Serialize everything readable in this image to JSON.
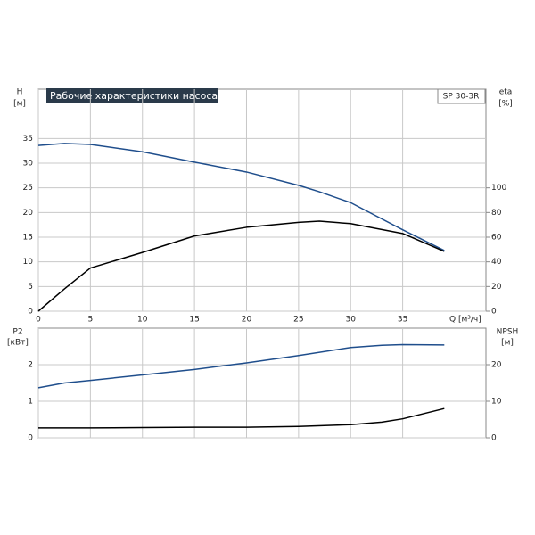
{
  "chart_data": [
    {
      "type": "line",
      "title": "Рабочие характеристики насоса",
      "model": "SP 30-3R",
      "y_label": "H",
      "y_unit": "[м]",
      "y2_label": "eta",
      "y2_unit": "[%]",
      "x_label": "Q [м³/ч]",
      "x": [
        0,
        2.5,
        5,
        10,
        15,
        20,
        25,
        27,
        30,
        35,
        39
      ],
      "series": [
        {
          "name": "H",
          "color": "#1f4e8c",
          "values": [
            33.6,
            34,
            33.8,
            32.3,
            30.2,
            28.2,
            25.5,
            24.2,
            22,
            16.5,
            12.3
          ]
        },
        {
          "name": "eta",
          "color": "#000000",
          "axis": "y2",
          "values": [
            0,
            18,
            35,
            47.6,
            61,
            68,
            72,
            73,
            71,
            63,
            48.5
          ]
        }
      ],
      "xlim": [
        0,
        43
      ],
      "xticks": [
        0,
        5,
        10,
        15,
        20,
        25,
        30,
        35
      ],
      "ylim": [
        0,
        45
      ],
      "yticks": [
        0,
        5,
        10,
        15,
        20,
        25,
        30,
        35
      ],
      "y2lim": [
        0,
        180
      ],
      "y2ticks": [
        0,
        20,
        40,
        60,
        80,
        100
      ],
      "grid": true
    },
    {
      "type": "line",
      "y_label": "P2",
      "y_unit": "[кВт]",
      "y2_label": "NPSH",
      "y2_unit": "[м]",
      "x": [
        0,
        2.5,
        5,
        10,
        15,
        20,
        25,
        30,
        33,
        35,
        39
      ],
      "series": [
        {
          "name": "P2",
          "color": "#1f4e8c",
          "values": [
            1.37,
            1.5,
            1.57,
            1.72,
            1.87,
            2.05,
            2.25,
            2.47,
            2.53,
            2.55,
            2.54
          ]
        },
        {
          "name": "NPSH",
          "color": "#000000",
          "axis": "y2",
          "values": [
            2.7,
            2.7,
            2.7,
            2.8,
            2.9,
            2.9,
            3.1,
            3.6,
            4.3,
            5.2,
            8
          ]
        }
      ],
      "xlim": [
        0,
        43
      ],
      "ylim": [
        0,
        3
      ],
      "yticks": [
        0,
        1,
        2
      ],
      "y2lim": [
        0,
        30
      ],
      "y2ticks": [
        0,
        10,
        20
      ],
      "grid": true
    }
  ]
}
